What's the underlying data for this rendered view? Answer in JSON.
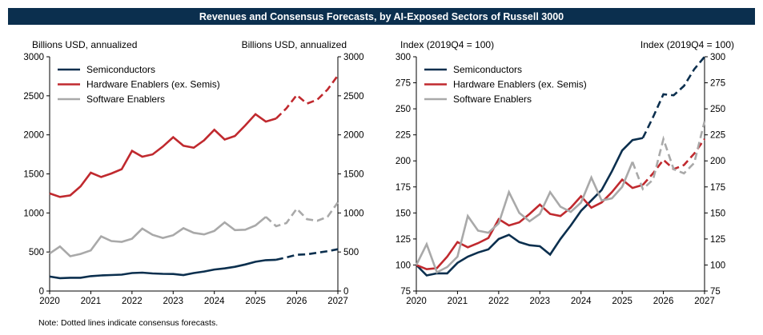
{
  "title": "Revenues and Consensus Forecasts, by AI-Exposed Sectors of Russell 3000",
  "note": "Note: Dotted lines indicate consensus forecasts.",
  "colors": {
    "Semiconductors": "#0b2f4e",
    "Hardware Enablers (ex. Semis)": "#c0292e",
    "Software Enablers": "#a9a9a9",
    "title_bg": "#0b2f4e"
  },
  "chart_data": [
    {
      "type": "line",
      "left_axis_title": "Billions USD, annualized",
      "right_axis_title": "Billions USD, annualized",
      "xlim": [
        2020,
        2027
      ],
      "ylim": [
        0,
        3000
      ],
      "x_ticks": [
        "2020",
        "2021",
        "2022",
        "2023",
        "2024",
        "2025",
        "2026",
        "2027"
      ],
      "y_ticks": [
        "0",
        "500",
        "1000",
        "1500",
        "2000",
        "2500",
        "3000"
      ],
      "legend": "top-left",
      "series": [
        {
          "name": "Semiconductors",
          "actual": [
            [
              2020,
              185
            ],
            [
              2020.25,
              165
            ],
            [
              2020.5,
              170
            ],
            [
              2020.75,
              170
            ],
            [
              2021,
              190
            ],
            [
              2021.25,
              200
            ],
            [
              2021.5,
              205
            ],
            [
              2021.75,
              210
            ],
            [
              2022,
              230
            ],
            [
              2022.25,
              235
            ],
            [
              2022.5,
              225
            ],
            [
              2022.75,
              220
            ],
            [
              2023,
              218
            ],
            [
              2023.25,
              205
            ],
            [
              2023.5,
              230
            ],
            [
              2023.75,
              250
            ],
            [
              2024,
              275
            ],
            [
              2024.25,
              290
            ],
            [
              2024.5,
              310
            ],
            [
              2024.75,
              340
            ],
            [
              2025,
              375
            ],
            [
              2025.25,
              395
            ],
            [
              2025.5,
              400
            ]
          ],
          "forecast": [
            [
              2025.5,
              400
            ],
            [
              2025.75,
              430
            ],
            [
              2026,
              465
            ],
            [
              2026.25,
              470
            ],
            [
              2026.5,
              490
            ],
            [
              2026.75,
              510
            ],
            [
              2027,
              535
            ]
          ]
        },
        {
          "name": "Hardware Enablers (ex. Semis)",
          "actual": [
            [
              2020,
              1250
            ],
            [
              2020.25,
              1205
            ],
            [
              2020.5,
              1225
            ],
            [
              2020.75,
              1340
            ],
            [
              2021,
              1515
            ],
            [
              2021.25,
              1460
            ],
            [
              2021.5,
              1505
            ],
            [
              2021.75,
              1560
            ],
            [
              2022,
              1795
            ],
            [
              2022.25,
              1720
            ],
            [
              2022.5,
              1750
            ],
            [
              2022.75,
              1850
            ],
            [
              2023,
              1970
            ],
            [
              2023.25,
              1860
            ],
            [
              2023.5,
              1835
            ],
            [
              2023.75,
              1930
            ],
            [
              2024,
              2065
            ],
            [
              2024.25,
              1940
            ],
            [
              2024.5,
              1985
            ],
            [
              2024.75,
              2120
            ],
            [
              2025,
              2265
            ],
            [
              2025.25,
              2170
            ],
            [
              2025.5,
              2210
            ]
          ],
          "forecast": [
            [
              2025.5,
              2210
            ],
            [
              2025.75,
              2340
            ],
            [
              2026,
              2510
            ],
            [
              2026.25,
              2400
            ],
            [
              2026.5,
              2450
            ],
            [
              2026.75,
              2580
            ],
            [
              2027,
              2760
            ]
          ]
        },
        {
          "name": "Software Enablers",
          "actual": [
            [
              2020,
              480
            ],
            [
              2020.25,
              570
            ],
            [
              2020.5,
              445
            ],
            [
              2020.75,
              475
            ],
            [
              2021,
              520
            ],
            [
              2021.25,
              700
            ],
            [
              2021.5,
              640
            ],
            [
              2021.75,
              630
            ],
            [
              2022,
              670
            ],
            [
              2022.25,
              800
            ],
            [
              2022.5,
              720
            ],
            [
              2022.75,
              680
            ],
            [
              2023,
              715
            ],
            [
              2023.25,
              805
            ],
            [
              2023.5,
              745
            ],
            [
              2023.75,
              725
            ],
            [
              2024,
              770
            ],
            [
              2024.25,
              880
            ],
            [
              2024.5,
              780
            ],
            [
              2024.75,
              785
            ],
            [
              2025,
              840
            ],
            [
              2025.25,
              950
            ]
          ],
          "forecast": [
            [
              2025.25,
              950
            ],
            [
              2025.5,
              830
            ],
            [
              2025.75,
              870
            ],
            [
              2026,
              1055
            ],
            [
              2026.25,
              920
            ],
            [
              2026.5,
              900
            ],
            [
              2026.75,
              950
            ],
            [
              2027,
              1135
            ]
          ]
        }
      ]
    },
    {
      "type": "line",
      "left_axis_title": "Index (2019Q4 = 100)",
      "right_axis_title": "Index (2019Q4 = 100)",
      "xlim": [
        2020,
        2027
      ],
      "ylim": [
        75,
        300
      ],
      "x_ticks": [
        "2020",
        "2021",
        "2022",
        "2023",
        "2024",
        "2025",
        "2026",
        "2027"
      ],
      "y_ticks": [
        "75",
        "100",
        "125",
        "150",
        "175",
        "200",
        "225",
        "250",
        "275",
        "300"
      ],
      "legend": "top-left",
      "series": [
        {
          "name": "Semiconductors",
          "actual": [
            [
              2020,
              100
            ],
            [
              2020.25,
              90
            ],
            [
              2020.5,
              92
            ],
            [
              2020.75,
              92
            ],
            [
              2021,
              102
            ],
            [
              2021.25,
              108
            ],
            [
              2021.5,
              112
            ],
            [
              2021.75,
              115
            ],
            [
              2022,
              125
            ],
            [
              2022.25,
              129
            ],
            [
              2022.5,
              122
            ],
            [
              2022.75,
              119
            ],
            [
              2023,
              118
            ],
            [
              2023.25,
              110
            ],
            [
              2023.5,
              125
            ],
            [
              2023.75,
              138
            ],
            [
              2024,
              152
            ],
            [
              2024.25,
              162
            ],
            [
              2024.5,
              172
            ],
            [
              2024.75,
              190
            ],
            [
              2025,
              210
            ],
            [
              2025.25,
              220
            ],
            [
              2025.5,
              222
            ]
          ],
          "forecast": [
            [
              2025.5,
              222
            ],
            [
              2025.75,
              242
            ],
            [
              2026,
              264
            ],
            [
              2026.25,
              263
            ],
            [
              2026.5,
              272
            ],
            [
              2026.75,
              288
            ],
            [
              2027,
              300
            ]
          ]
        },
        {
          "name": "Hardware Enablers (ex. Semis)",
          "actual": [
            [
              2020,
              100
            ],
            [
              2020.25,
              96
            ],
            [
              2020.5,
              97
            ],
            [
              2020.75,
              108
            ],
            [
              2021,
              122
            ],
            [
              2021.25,
              117
            ],
            [
              2021.5,
              121
            ],
            [
              2021.75,
              126
            ],
            [
              2022,
              144
            ],
            [
              2022.25,
              138
            ],
            [
              2022.5,
              141
            ],
            [
              2022.75,
              149
            ],
            [
              2023,
              158
            ],
            [
              2023.25,
              149
            ],
            [
              2023.5,
              147
            ],
            [
              2023.75,
              155
            ],
            [
              2024,
              166
            ],
            [
              2024.25,
              155
            ],
            [
              2024.5,
              160
            ],
            [
              2024.75,
              170
            ],
            [
              2025,
              182
            ],
            [
              2025.25,
              174
            ],
            [
              2025.5,
              177
            ]
          ],
          "forecast": [
            [
              2025.5,
              177
            ],
            [
              2025.75,
              188
            ],
            [
              2026,
              201
            ],
            [
              2026.25,
              192
            ],
            [
              2026.5,
              196
            ],
            [
              2026.75,
              207
            ],
            [
              2027,
              221
            ]
          ]
        },
        {
          "name": "Software Enablers",
          "actual": [
            [
              2020,
              100
            ],
            [
              2020.25,
              120
            ],
            [
              2020.5,
              93
            ],
            [
              2020.75,
              98
            ],
            [
              2021,
              108
            ],
            [
              2021.25,
              147
            ],
            [
              2021.5,
              133
            ],
            [
              2021.75,
              131
            ],
            [
              2022,
              140
            ],
            [
              2022.25,
              170
            ],
            [
              2022.5,
              150
            ],
            [
              2022.75,
              142
            ],
            [
              2023,
              149
            ],
            [
              2023.25,
              170
            ],
            [
              2023.5,
              156
            ],
            [
              2023.75,
              151
            ],
            [
              2024,
              160
            ],
            [
              2024.25,
              184
            ],
            [
              2024.5,
              162
            ],
            [
              2024.75,
              164
            ],
            [
              2025,
              175
            ],
            [
              2025.25,
              199
            ]
          ],
          "forecast": [
            [
              2025.25,
              199
            ],
            [
              2025.5,
              173
            ],
            [
              2025.75,
              182
            ],
            [
              2026,
              221
            ],
            [
              2026.25,
              192
            ],
            [
              2026.5,
              188
            ],
            [
              2026.75,
              198
            ],
            [
              2027,
              238
            ]
          ]
        }
      ]
    }
  ]
}
